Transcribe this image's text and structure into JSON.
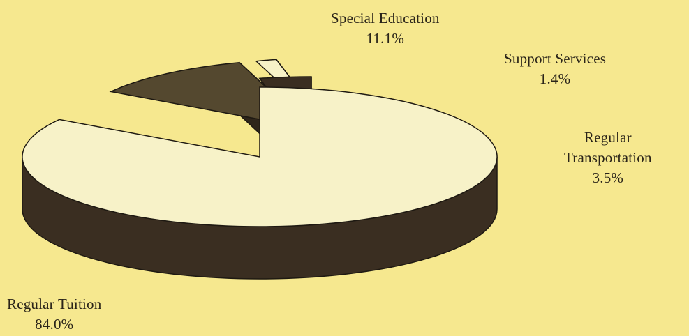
{
  "chart_data": {
    "type": "pie",
    "style": "3d-exploded",
    "slices": [
      {
        "label": "Regular Tuition",
        "label_lines": [
          "Regular Tuition"
        ],
        "value": 84.0,
        "value_label": "84.0%",
        "top_color": "#f7f2c8",
        "side_color": "#3a2e21"
      },
      {
        "label": "Special Education",
        "label_lines": [
          "Special Education"
        ],
        "value": 11.1,
        "value_label": "11.1%",
        "top_color": "#54482f",
        "side_color": "#2e251a"
      },
      {
        "label": "Support Services",
        "label_lines": [
          "Support Services"
        ],
        "value": 1.4,
        "value_label": "1.4%",
        "top_color": "#f7f2c8",
        "side_color": "#2e251a"
      },
      {
        "label": "Regular Transportation",
        "label_lines": [
          "Regular",
          "Transportation"
        ],
        "value": 3.5,
        "value_label": "3.5%",
        "top_color": "#3a2e21",
        "side_color": "#2a2218"
      }
    ],
    "title": "",
    "legend": "none"
  }
}
